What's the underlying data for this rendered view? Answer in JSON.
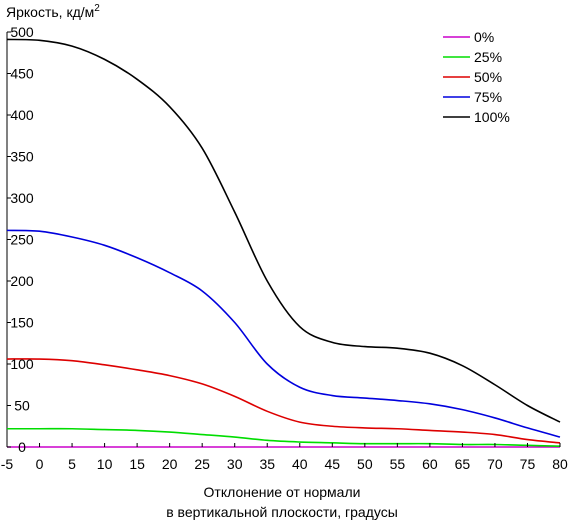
{
  "chart_data": {
    "type": "line",
    "ylabel": "Яркость, кд/м",
    "ylabel_sup": "2",
    "xlabel_line1": "Отклонение от нормали",
    "xlabel_line2": "в вертикальной плоскости, градусы",
    "xlim": [
      -5,
      80
    ],
    "ylim": [
      0,
      500
    ],
    "xticks": [
      -5,
      0,
      5,
      10,
      15,
      20,
      25,
      30,
      35,
      40,
      45,
      50,
      55,
      60,
      65,
      70,
      75,
      80
    ],
    "yticks": [
      0,
      50,
      100,
      150,
      200,
      250,
      300,
      350,
      400,
      450,
      500
    ],
    "grid": false,
    "legend_position": "top-right",
    "x": [
      -5,
      0,
      5,
      10,
      15,
      20,
      25,
      30,
      35,
      40,
      45,
      50,
      55,
      60,
      65,
      70,
      75,
      80
    ],
    "series": [
      {
        "name": "0%",
        "color": "#cc00cc",
        "values": [
          0,
          0,
          0,
          0,
          0,
          0,
          0,
          0,
          0,
          0,
          0,
          0,
          0,
          0,
          0,
          0,
          0,
          0
        ]
      },
      {
        "name": "25%",
        "color": "#00dd00",
        "values": [
          22,
          22,
          22,
          21,
          20,
          18,
          15,
          12,
          8,
          6,
          5,
          4,
          4,
          4,
          3,
          3,
          2,
          1
        ]
      },
      {
        "name": "50%",
        "color": "#dd0000",
        "values": [
          106,
          106,
          104,
          99,
          93,
          86,
          76,
          61,
          43,
          30,
          25,
          23,
          22,
          20,
          18,
          15,
          9,
          5
        ]
      },
      {
        "name": "75%",
        "color": "#0000dd",
        "values": [
          261,
          260,
          253,
          243,
          228,
          210,
          188,
          150,
          100,
          72,
          62,
          59,
          56,
          52,
          45,
          35,
          23,
          12
        ]
      },
      {
        "name": "100%",
        "color": "#000000",
        "values": [
          491,
          490,
          483,
          467,
          443,
          410,
          360,
          283,
          200,
          145,
          126,
          121,
          119,
          113,
          98,
          75,
          50,
          30
        ]
      }
    ]
  }
}
